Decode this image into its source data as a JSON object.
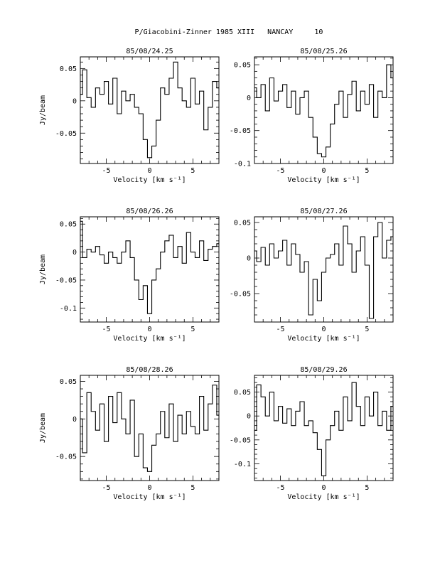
{
  "page_title": "P/Giacobini-Zinner 1985 XIII   NANCAY     10",
  "chart_data": [
    {
      "type": "line",
      "title": "85/08/24.25",
      "xlabel": "Velocity [km s⁻¹]",
      "ylabel": "Jy/beam",
      "xlim": [
        -8,
        8
      ],
      "ylim": [
        -0.097,
        0.068
      ],
      "xticks": [
        -5,
        0,
        5
      ],
      "yticks": [
        0.05,
        0,
        -0.05
      ],
      "ytick_labels": [
        "0.05",
        "0",
        "-0.05"
      ],
      "series": [
        {
          "x": [
            -8,
            -7.5,
            -7,
            -6.5,
            -6,
            -5.5,
            -5,
            -4.5,
            -4,
            -3.5,
            -3,
            -2.5,
            -2,
            -1.5,
            -1,
            -0.5,
            0,
            0.5,
            1,
            1.5,
            2,
            2.5,
            3,
            3.5,
            4,
            4.5,
            5,
            5.5,
            6,
            6.5,
            7,
            7.5,
            8
          ],
          "y": [
            0.01,
            0.048,
            0.005,
            -0.01,
            0.02,
            0.01,
            0.03,
            -0.005,
            0.035,
            -0.02,
            0.015,
            0.0,
            0.01,
            -0.01,
            -0.02,
            -0.06,
            -0.088,
            -0.07,
            -0.03,
            0.02,
            0.01,
            0.035,
            0.06,
            0.02,
            0.0,
            -0.01,
            0.035,
            -0.005,
            0.015,
            -0.045,
            -0.01,
            0.03,
            0.02
          ]
        }
      ]
    },
    {
      "type": "line",
      "title": "85/08/25.26",
      "xlabel": "Velocity [km s⁻¹]",
      "ylabel": "",
      "xlim": [
        -8,
        8
      ],
      "ylim": [
        -0.1,
        0.062
      ],
      "xticks": [
        -5,
        0,
        5
      ],
      "yticks": [
        0.05,
        0,
        -0.05,
        -0.1
      ],
      "ytick_labels": [
        "0.05",
        "0",
        "-0.05",
        "-0.1"
      ],
      "series": [
        {
          "x": [
            -8,
            -7.5,
            -7,
            -6.5,
            -6,
            -5.5,
            -5,
            -4.5,
            -4,
            -3.5,
            -3,
            -2.5,
            -2,
            -1.5,
            -1,
            -0.5,
            0,
            0.5,
            1,
            1.5,
            2,
            2.5,
            3,
            3.5,
            4,
            4.5,
            5,
            5.5,
            6,
            6.5,
            7,
            7.5,
            8
          ],
          "y": [
            0.015,
            0.0,
            0.02,
            -0.02,
            0.03,
            -0.005,
            0.01,
            0.02,
            -0.015,
            0.01,
            -0.025,
            0.0,
            0.01,
            -0.03,
            -0.06,
            -0.085,
            -0.09,
            -0.075,
            -0.04,
            -0.01,
            0.01,
            -0.03,
            0.005,
            0.025,
            -0.02,
            0.01,
            -0.01,
            0.02,
            -0.03,
            0.01,
            0.0,
            0.05,
            0.03
          ]
        }
      ]
    },
    {
      "type": "line",
      "title": "85/08/26.26",
      "xlabel": "Velocity [km s⁻¹]",
      "ylabel": "Jy/beam",
      "xlim": [
        -8,
        8
      ],
      "ylim": [
        -0.125,
        0.063
      ],
      "xticks": [
        -5,
        0,
        5
      ],
      "yticks": [
        0.05,
        0,
        -0.05,
        -0.1
      ],
      "ytick_labels": [
        "0.05",
        "0",
        "-0.05",
        "-0.1"
      ],
      "series": [
        {
          "x": [
            -8,
            -7.5,
            -7,
            -6.5,
            -6,
            -5.5,
            -5,
            -4.5,
            -4,
            -3.5,
            -3,
            -2.5,
            -2,
            -1.5,
            -1,
            -0.5,
            0,
            0.5,
            1,
            1.5,
            2,
            2.5,
            3,
            3.5,
            4,
            4.5,
            5,
            5.5,
            6,
            6.5,
            7,
            7.5,
            8
          ],
          "y": [
            0.055,
            -0.01,
            0.005,
            0.0,
            0.01,
            -0.005,
            -0.02,
            0.0,
            -0.01,
            -0.02,
            0.0,
            0.02,
            -0.01,
            -0.05,
            -0.085,
            -0.06,
            -0.11,
            -0.05,
            -0.03,
            0.0,
            0.02,
            0.03,
            -0.01,
            0.01,
            -0.02,
            0.035,
            0.0,
            -0.01,
            0.02,
            -0.015,
            0.005,
            0.01,
            0.015
          ]
        }
      ]
    },
    {
      "type": "line",
      "title": "85/08/27.26",
      "xlabel": "Velocity [km s⁻¹]",
      "ylabel": "",
      "xlim": [
        -8,
        8
      ],
      "ylim": [
        -0.09,
        0.058
      ],
      "xticks": [
        -5,
        0,
        5
      ],
      "yticks": [
        0.05,
        0,
        -0.05
      ],
      "ytick_labels": [
        "0.05",
        "0",
        "-0.05"
      ],
      "series": [
        {
          "x": [
            -8,
            -7.5,
            -7,
            -6.5,
            -6,
            -5.5,
            -5,
            -4.5,
            -4,
            -3.5,
            -3,
            -2.5,
            -2,
            -1.5,
            -1,
            -0.5,
            0,
            0.5,
            1,
            1.5,
            2,
            2.5,
            3,
            3.5,
            4,
            4.5,
            5,
            5.5,
            6,
            6.5,
            7,
            7.5,
            8
          ],
          "y": [
            0.01,
            -0.005,
            0.015,
            -0.01,
            0.02,
            0.0,
            0.01,
            0.025,
            -0.01,
            0.02,
            0.005,
            -0.02,
            -0.005,
            -0.08,
            -0.03,
            -0.06,
            -0.02,
            0.0,
            0.005,
            0.02,
            -0.01,
            0.045,
            0.02,
            -0.02,
            0.01,
            0.03,
            -0.01,
            -0.085,
            0.03,
            0.05,
            0.0,
            0.025,
            0.03
          ]
        }
      ]
    },
    {
      "type": "line",
      "title": "85/08/28.26",
      "xlabel": "Velocity [km s⁻¹]",
      "ylabel": "Jy/beam",
      "xlim": [
        -8,
        8
      ],
      "ylim": [
        -0.082,
        0.058
      ],
      "xticks": [
        -5,
        0,
        5
      ],
      "yticks": [
        0.05,
        0,
        -0.05
      ],
      "ytick_labels": [
        "0.05",
        "0",
        "-0.05"
      ],
      "series": [
        {
          "x": [
            -8,
            -7.5,
            -7,
            -6.5,
            -6,
            -5.5,
            -5,
            -4.5,
            -4,
            -3.5,
            -3,
            -2.5,
            -2,
            -1.5,
            -1,
            -0.5,
            0,
            0.5,
            1,
            1.5,
            2,
            2.5,
            3,
            3.5,
            4,
            4.5,
            5,
            5.5,
            6,
            6.5,
            7,
            7.5,
            8
          ],
          "y": [
            0.0,
            -0.045,
            0.035,
            0.01,
            -0.015,
            0.02,
            -0.03,
            0.03,
            -0.005,
            0.035,
            0.0,
            -0.02,
            0.025,
            -0.05,
            -0.02,
            -0.065,
            -0.07,
            -0.035,
            -0.02,
            0.01,
            -0.025,
            0.02,
            -0.03,
            0.005,
            -0.02,
            0.01,
            -0.01,
            -0.02,
            0.03,
            -0.015,
            0.02,
            0.045,
            0.005
          ]
        }
      ]
    },
    {
      "type": "line",
      "title": "85/08/29.26",
      "xlabel": "Velocity [km s⁻¹]",
      "ylabel": "",
      "xlim": [
        -8,
        8
      ],
      "ylim": [
        -0.135,
        0.085
      ],
      "xticks": [
        -5,
        0,
        5
      ],
      "yticks": [
        0.05,
        0,
        -0.05,
        -0.1
      ],
      "ytick_labels": [
        "0.05",
        "0",
        "-0.05",
        "-0.1"
      ],
      "series": [
        {
          "x": [
            -8,
            -7.5,
            -7,
            -6.5,
            -6,
            -5.5,
            -5,
            -4.5,
            -4,
            -3.5,
            -3,
            -2.5,
            -2,
            -1.5,
            -1,
            -0.5,
            0,
            0.5,
            1,
            1.5,
            2,
            2.5,
            3,
            3.5,
            4,
            4.5,
            5,
            5.5,
            6,
            6.5,
            7,
            7.5,
            8
          ],
          "y": [
            -0.03,
            0.065,
            0.04,
            0.0,
            0.05,
            -0.01,
            0.02,
            -0.015,
            0.015,
            -0.02,
            0.01,
            0.03,
            -0.02,
            -0.01,
            -0.035,
            -0.07,
            -0.125,
            -0.05,
            -0.02,
            0.01,
            -0.03,
            0.04,
            -0.01,
            0.07,
            0.02,
            -0.02,
            0.04,
            0.0,
            0.05,
            -0.02,
            0.01,
            -0.03,
            0.02
          ]
        }
      ]
    }
  ]
}
